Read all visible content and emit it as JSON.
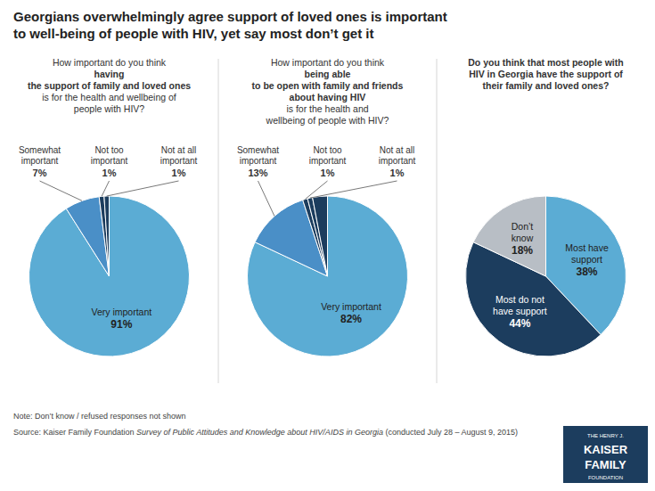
{
  "title": "Georgians overwhelmingly agree support of loved ones is important\nto well-being of people with HIV, yet say most don’t get it",
  "chart_data": [
    {
      "type": "pie",
      "subtitle": [
        "How important do you think",
        "having\nthe support of family and loved ones",
        "is for the health and wellbeing of\npeople with HIV?"
      ],
      "categories": [
        "Very important",
        "Somewhat\nimportant",
        "Not too\nimportant",
        "Not at all\nimportant"
      ],
      "values": [
        91,
        7,
        1,
        1
      ],
      "colors": [
        "#5bacd4",
        "#4a8fc7",
        "#1c3d5e",
        "#1c3d5e"
      ],
      "data_labels": true,
      "value_labels": [
        "91%",
        "7%",
        "1%",
        "1%"
      ]
    },
    {
      "type": "pie",
      "subtitle": [
        "How important do you think",
        "being able\nto be open with family and friends\nabout having HIV",
        "is for the health and\nwellbeing of people with HIV?"
      ],
      "categories": [
        "Very important",
        "Somewhat\nimportant",
        "Not too\nimportant",
        "Not at all\nimportant",
        null
      ],
      "values": [
        82,
        13,
        1,
        1,
        3
      ],
      "colors": [
        "#5bacd4",
        "#4a8fc7",
        "#1c3d5e",
        "#1c3d5e",
        "#1c3d5e"
      ],
      "data_labels": true,
      "value_labels": [
        "82%",
        "13%",
        "1%",
        "1%",
        null
      ]
    },
    {
      "type": "pie",
      "subtitle": [
        "Do you think that most people with\nHIV in Georgia have the support of\ntheir family and loved ones?"
      ],
      "categories": [
        "Most have\nsupport",
        "Most do not\nhave support",
        "Don’t\nknow"
      ],
      "values": [
        38,
        44,
        18
      ],
      "colors": [
        "#5bacd4",
        "#1c3d5e",
        "#b8bec5"
      ],
      "data_labels": true,
      "value_labels": [
        "38%",
        "44%",
        "18%"
      ]
    }
  ],
  "note": "Note: Don’t know / refused responses not shown",
  "source": [
    "Source: Kaiser Family Foundation ",
    "Survey of Public Attitudes and Knowledge about HIV/AIDS in Georgia",
    " (conducted July 28 – August 9, 2015)"
  ],
  "logo": {
    "texts": [
      "THE HENRY J.",
      "KAISER",
      "FAMILY",
      "FOUNDATION"
    ],
    "color": "#1c3d5e"
  }
}
